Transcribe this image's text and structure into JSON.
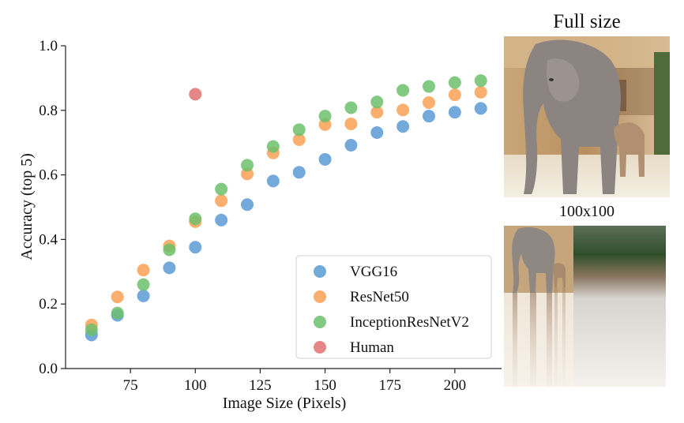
{
  "chart_data": {
    "type": "scatter",
    "xlabel": "Image Size (Pixels)",
    "ylabel": "Accuracy (top 5)",
    "xlim": [
      50,
      218
    ],
    "ylim": [
      0.0,
      1.0
    ],
    "xticks": [
      75,
      100,
      125,
      150,
      175,
      200
    ],
    "xtick_labels": [
      "75",
      "100",
      "125",
      "150",
      "175",
      "200"
    ],
    "yticks": [
      0.0,
      0.2,
      0.4,
      0.6,
      0.8,
      1.0
    ],
    "ytick_labels": [
      "0.0",
      "0.2",
      "0.4",
      "0.6",
      "0.8",
      "1.0"
    ],
    "grid": false,
    "legend_position": "lower-right",
    "series": [
      {
        "name": "VGG16",
        "color": "#5b9bd5",
        "x": [
          60,
          70,
          80,
          90,
          100,
          110,
          120,
          130,
          140,
          150,
          160,
          170,
          180,
          190,
          200,
          210
        ],
        "y": [
          0.104,
          0.165,
          0.225,
          0.312,
          0.376,
          0.46,
          0.508,
          0.581,
          0.608,
          0.648,
          0.692,
          0.731,
          0.75,
          0.782,
          0.794,
          0.806
        ]
      },
      {
        "name": "ResNet50",
        "color": "#f9a155",
        "x": [
          60,
          70,
          80,
          90,
          100,
          110,
          120,
          130,
          140,
          150,
          160,
          170,
          180,
          190,
          200,
          210
        ],
        "y": [
          0.135,
          0.222,
          0.305,
          0.38,
          0.455,
          0.52,
          0.603,
          0.668,
          0.709,
          0.756,
          0.758,
          0.794,
          0.801,
          0.824,
          0.848,
          0.856
        ]
      },
      {
        "name": "InceptionResNetV2",
        "color": "#6cbf6c",
        "x": [
          60,
          70,
          80,
          90,
          100,
          110,
          120,
          130,
          140,
          150,
          160,
          170,
          180,
          190,
          200,
          210
        ],
        "y": [
          0.12,
          0.172,
          0.26,
          0.368,
          0.464,
          0.556,
          0.63,
          0.688,
          0.74,
          0.782,
          0.808,
          0.826,
          0.862,
          0.874,
          0.886,
          0.892
        ]
      },
      {
        "name": "Human",
        "color": "#e07272",
        "x": [
          100
        ],
        "y": [
          0.85
        ]
      }
    ]
  },
  "images": {
    "full": {
      "label": "Full size"
    },
    "small": {
      "label": "100x100"
    }
  }
}
